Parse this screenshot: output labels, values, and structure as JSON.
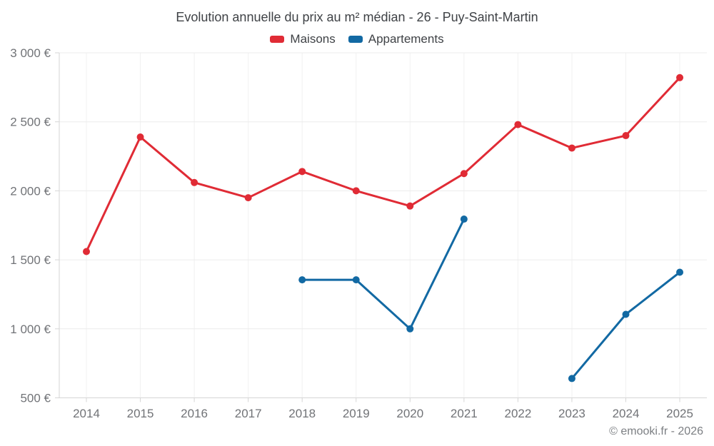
{
  "title": "Evolution annuelle du prix au m² médian - 26 - Puy-Saint-Martin",
  "legend": [
    {
      "label": "Maisons",
      "color": "#e02b35"
    },
    {
      "label": "Appartements",
      "color": "#1269a3"
    }
  ],
  "footer": "© emooki.fr - 2026",
  "colors": {
    "maisons": "#e02b35",
    "appartements": "#1269a3",
    "gridline": "#ececec",
    "vertical_gridline": "#f1f1f1",
    "axis": "#d6d6d6",
    "tick_text": "#717377"
  },
  "chart_data": {
    "type": "line",
    "x": [
      "2014",
      "2015",
      "2016",
      "2017",
      "2018",
      "2019",
      "2020",
      "2021",
      "2022",
      "2023",
      "2024",
      "2025"
    ],
    "series": [
      {
        "name": "Maisons",
        "color": "#e02b35",
        "values": [
          1560,
          2390,
          2060,
          1950,
          2140,
          2000,
          1890,
          2125,
          2480,
          2310,
          2400,
          2820
        ]
      },
      {
        "name": "Appartements",
        "color": "#1269a3",
        "values": [
          null,
          null,
          null,
          null,
          1355,
          1355,
          1000,
          1795,
          null,
          640,
          1105,
          1410
        ]
      }
    ],
    "title": "Evolution annuelle du prix au m² médian - 26 - Puy-Saint-Martin",
    "xlabel": "",
    "ylabel": "",
    "ylim": [
      500,
      3000
    ],
    "yticks": [
      500,
      1000,
      1500,
      2000,
      2500,
      3000
    ],
    "ytick_labels": [
      "500 €",
      "1 000 €",
      "1 500 €",
      "2 000 €",
      "2 500 €",
      "3 000 €"
    ],
    "grid": true,
    "legend_position": "top"
  }
}
